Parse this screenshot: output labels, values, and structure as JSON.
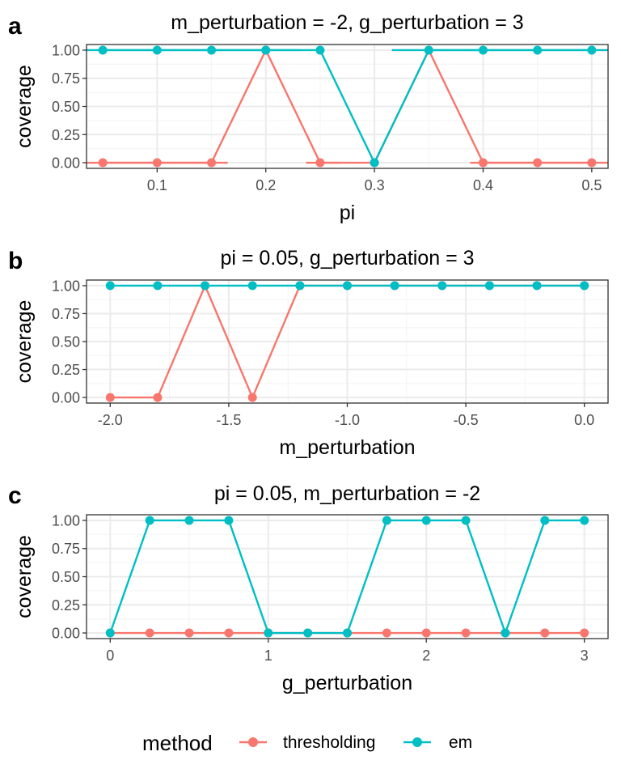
{
  "colors": {
    "thresholding": "#F8766D",
    "em": "#00BFC4",
    "grid_major": "#EBEBEB",
    "grid_minor": "#F5F5F5",
    "frame": "#333333",
    "tick_text": "#4D4D4D"
  },
  "legend": {
    "title": "method",
    "entries": [
      {
        "label": "thresholding",
        "series": "thresholding"
      },
      {
        "label": "em",
        "series": "em"
      }
    ]
  },
  "chart_data": [
    {
      "type": "line",
      "panel_letter": "a",
      "title": "m_perturbation = -2, g_perturbation = 3",
      "xlabel": "pi",
      "ylabel": "coverage",
      "xlim": [
        0.035,
        0.515
      ],
      "ylim": [
        -0.05,
        1.05
      ],
      "xticks": [
        0.1,
        0.2,
        0.3,
        0.4,
        0.5
      ],
      "xtick_labels": [
        "0.1",
        "0.2",
        "0.3",
        "0.4",
        "0.5"
      ],
      "yticks": [
        0,
        0.25,
        0.5,
        0.75,
        1
      ],
      "ytick_labels": [
        "0.00",
        "0.25",
        "0.50",
        "0.75",
        "1.00"
      ],
      "grid": true,
      "x": [
        0.05,
        0.1,
        0.15,
        0.2,
        0.25,
        0.3,
        0.35,
        0.4,
        0.45,
        0.5
      ],
      "series": [
        {
          "name": "thresholding",
          "values": [
            0,
            0,
            0,
            1,
            0,
            0,
            1,
            0,
            0,
            0
          ]
        },
        {
          "name": "em",
          "values": [
            1,
            1,
            1,
            1,
            1,
            0,
            1,
            1,
            1,
            1
          ]
        }
      ],
      "note_segments": [
        {
          "series": "em",
          "x0": 0.035,
          "x1": 0.232,
          "y": 1
        },
        {
          "series": "em",
          "x0": 0.316,
          "x1": 0.515,
          "y": 1
        },
        {
          "series": "thresholding",
          "x0": 0.035,
          "x1": 0.165,
          "y": 0
        },
        {
          "series": "thresholding",
          "x0": 0.237,
          "x1": 0.268,
          "y": 0
        },
        {
          "series": "thresholding",
          "x0": 0.388,
          "x1": 0.515,
          "y": 0
        }
      ]
    },
    {
      "type": "line",
      "panel_letter": "b",
      "title": "pi = 0.05, g_perturbation = 3",
      "xlabel": "m_perturbation",
      "ylabel": "coverage",
      "xlim": [
        -2.1,
        0.1
      ],
      "ylim": [
        -0.05,
        1.05
      ],
      "xticks": [
        -2,
        -1.5,
        -1,
        -0.5,
        0
      ],
      "xtick_labels": [
        "-2.0",
        "-1.5",
        "-1.0",
        "-0.5",
        "0.0"
      ],
      "yticks": [
        0,
        0.25,
        0.5,
        0.75,
        1
      ],
      "ytick_labels": [
        "0.00",
        "0.25",
        "0.50",
        "0.75",
        "1.00"
      ],
      "grid": true,
      "x": [
        -2,
        -1.8,
        -1.6,
        -1.4,
        -1.2,
        -1,
        -0.8,
        -0.6,
        -0.4,
        -0.2,
        0
      ],
      "series": [
        {
          "name": "thresholding",
          "values": [
            0,
            0,
            1,
            0,
            1,
            1,
            1,
            1,
            1,
            1,
            1
          ]
        },
        {
          "name": "em",
          "values": [
            1,
            1,
            1,
            1,
            1,
            1,
            1,
            1,
            1,
            1,
            1
          ]
        }
      ]
    },
    {
      "type": "line",
      "panel_letter": "c",
      "title": "pi = 0.05, m_perturbation = -2",
      "xlabel": "g_perturbation",
      "ylabel": "coverage",
      "xlim": [
        -0.15,
        3.15
      ],
      "ylim": [
        -0.05,
        1.05
      ],
      "xticks": [
        0,
        1,
        2,
        3
      ],
      "xtick_labels": [
        "0",
        "1",
        "2",
        "3"
      ],
      "yticks": [
        0,
        0.25,
        0.5,
        0.75,
        1
      ],
      "ytick_labels": [
        "0.00",
        "0.25",
        "0.50",
        "0.75",
        "1.00"
      ],
      "grid": true,
      "x": [
        0,
        0.25,
        0.5,
        0.75,
        1,
        1.25,
        1.5,
        1.75,
        2,
        2.25,
        2.5,
        2.75,
        3
      ],
      "series": [
        {
          "name": "thresholding",
          "values": [
            0,
            0,
            0,
            0,
            0,
            0,
            0,
            0,
            0,
            0,
            0,
            0,
            0
          ]
        },
        {
          "name": "em",
          "values": [
            0,
            1,
            1,
            1,
            0,
            0,
            0,
            1,
            1,
            1,
            0,
            1,
            1
          ]
        }
      ]
    }
  ]
}
